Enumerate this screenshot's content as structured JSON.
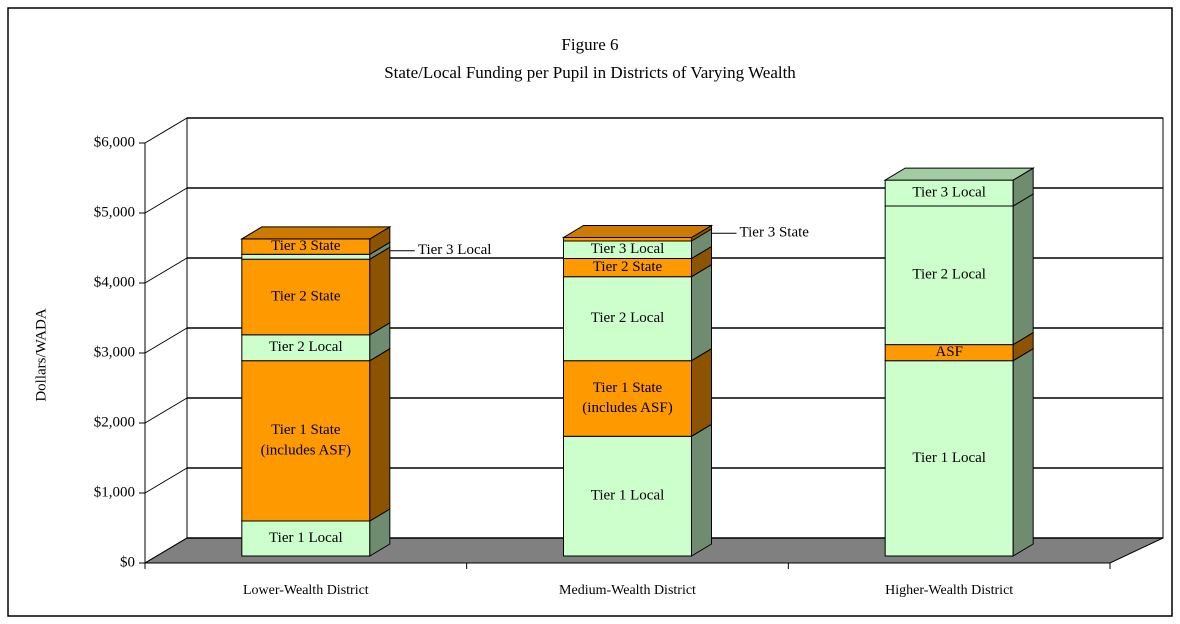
{
  "chart_data": {
    "type": "bar3d_stacked",
    "title": "Figure 6",
    "subtitle": "State/Local Funding per Pupil in Districts of Varying Wealth",
    "y_label": "Dollars/WADA",
    "categories": [
      "Lower-Wealth District",
      "Medium-Wealth District",
      "Higher-Wealth District"
    ],
    "series": [
      {
        "name": "Tier 1 Local",
        "color": "#ccffcc",
        "values": [
          500,
          1710,
          2790
        ]
      },
      {
        "name": "Tier 1 State (includes ASF)",
        "color": "#ff9900",
        "values": [
          2290,
          1080,
          null
        ]
      },
      {
        "name": "ASF",
        "color": "#ff9900",
        "values": [
          null,
          null,
          230
        ]
      },
      {
        "name": "Tier 2 Local",
        "color": "#ccffcc",
        "values": [
          370,
          1200,
          1980
        ]
      },
      {
        "name": "Tier 2 State",
        "color": "#ff9900",
        "values": [
          1080,
          260,
          null
        ]
      },
      {
        "name": "Tier 3 Local",
        "color": "#ccffcc",
        "values": [
          70,
          250,
          370
        ]
      },
      {
        "name": "Tier 3 State",
        "color": "#ff9900",
        "values": [
          220,
          50,
          null
        ]
      }
    ],
    "ylim": [
      0,
      6000
    ],
    "yticks": [
      {
        "value": 0,
        "label": "$0"
      },
      {
        "value": 1000,
        "label": "$1,000"
      },
      {
        "value": 2000,
        "label": "$2,000"
      },
      {
        "value": 3000,
        "label": "$3,000"
      },
      {
        "value": 4000,
        "label": "$4,000"
      },
      {
        "value": 5000,
        "label": "$5,000"
      },
      {
        "value": 6000,
        "label": "$6,000"
      }
    ],
    "grid": true,
    "floor_color": "#808080"
  }
}
